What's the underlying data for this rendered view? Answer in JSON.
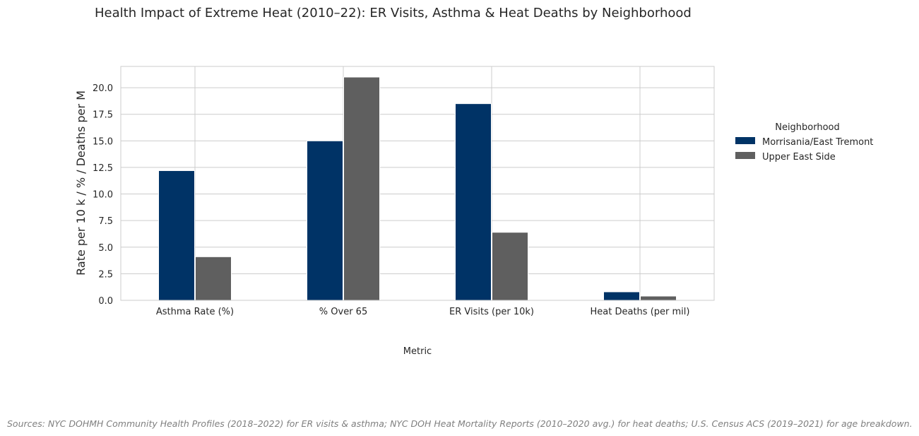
{
  "title": "Health Impact of Extreme Heat (2010–22): ER Visits, Asthma & Heat Deaths by Neighborhood",
  "source": "Sources: NYC DOHMH Community Health Profiles (2018–2022) for ER visits & asthma; NYC DOH Heat Mortality Reports (2010–2020 avg.) for heat deaths; U.S. Census ACS (2019–2021) for age breakdown.",
  "colors": {
    "series0": "#003366",
    "series1": "#5f5f5f",
    "grid": "#cccccc",
    "frame": "#cccccc"
  },
  "chart_data": {
    "type": "bar",
    "categories": [
      "Asthma Rate (%)",
      "% Over 65",
      "ER Visits (per 10k)",
      "Heat Deaths (per mil)"
    ],
    "series": [
      {
        "name": "Morrisania/East Tremont",
        "values": [
          12.2,
          15.0,
          18.5,
          0.8
        ]
      },
      {
        "name": "Upper East Side",
        "values": [
          4.1,
          21.0,
          6.4,
          0.4
        ]
      }
    ],
    "xlabel": "Metric",
    "ylabel": "Rate per 10 k / % / Deaths per M",
    "ylim": [
      0,
      22
    ],
    "yticks": [
      "0.0",
      "2.5",
      "5.0",
      "7.5",
      "10.0",
      "12.5",
      "15.0",
      "17.5",
      "20.0"
    ],
    "legend_title": "Neighborhood",
    "legend_position": "right",
    "grid": true
  }
}
